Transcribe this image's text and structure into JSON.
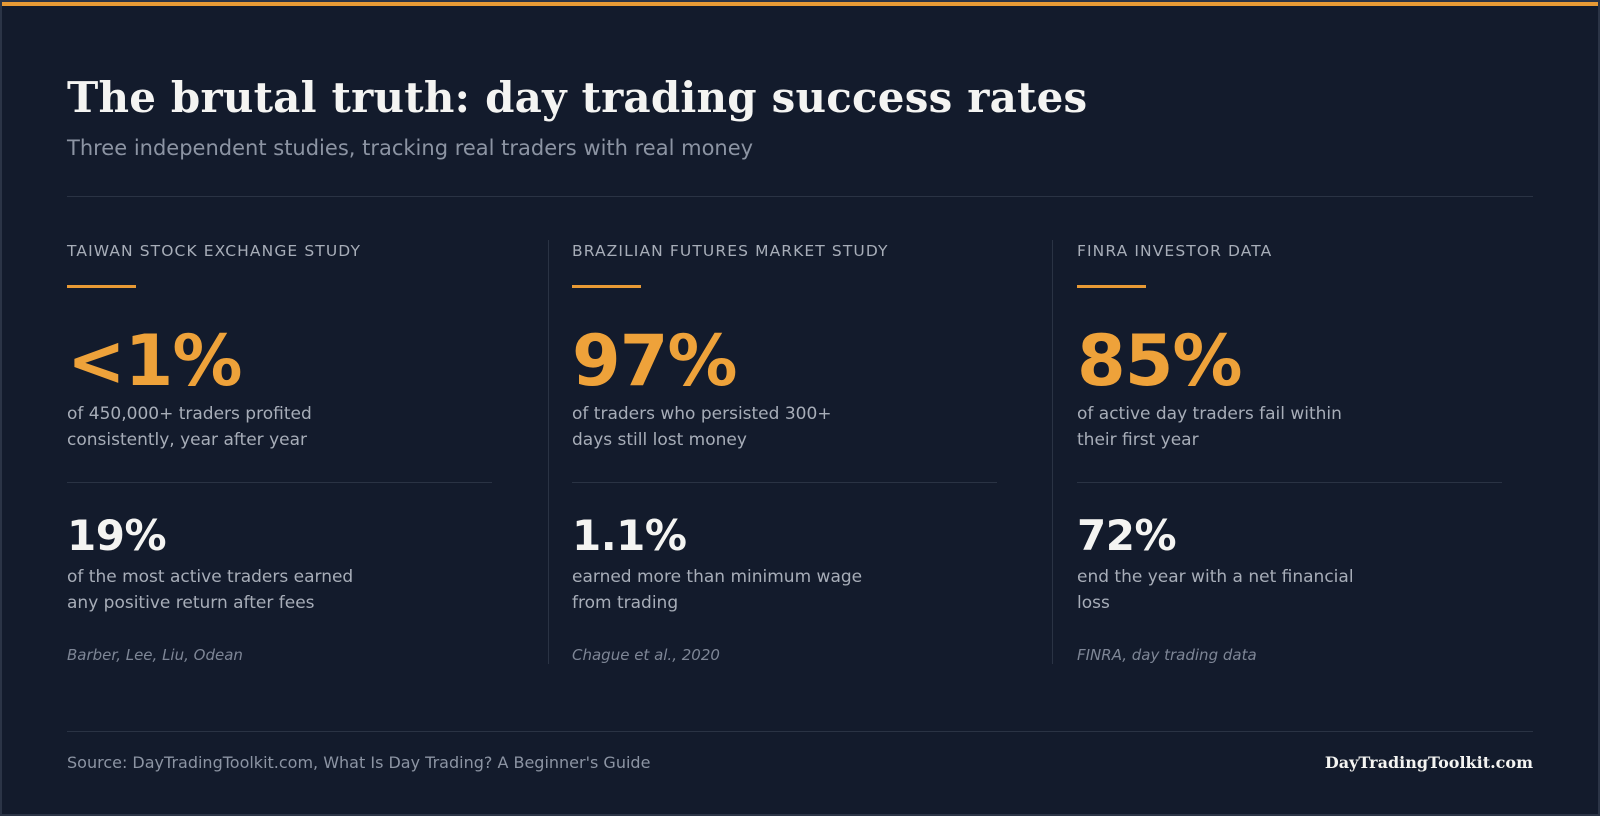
{
  "header": {
    "title": "The brutal truth: day trading success rates",
    "subtitle": "Three independent studies, tracking real traders with real money"
  },
  "colors": {
    "background": "#131b2c",
    "accent": "#e89a35",
    "stat": "#eea23a"
  },
  "studies": [
    {
      "label": "TAIWAN STOCK EXCHANGE STUDY",
      "primary_value": "<1%",
      "primary_desc": "of 450,000+ traders profited consistently, year after year",
      "secondary_value": "19%",
      "secondary_desc": "of the most active traders earned any positive return after fees",
      "citation": "Barber, Lee, Liu, Odean"
    },
    {
      "label": "BRAZILIAN FUTURES MARKET STUDY",
      "primary_value": "97%",
      "primary_desc": "of traders who persisted 300+ days still lost money",
      "secondary_value": "1.1%",
      "secondary_desc": "earned more than minimum wage from trading",
      "citation": "Chague et al., 2020"
    },
    {
      "label": "FINRA INVESTOR DATA",
      "primary_value": "85%",
      "primary_desc": "of active day traders fail within their first year",
      "secondary_value": "72%",
      "secondary_desc": "end the year with a net financial loss",
      "citation": "FINRA, day trading data"
    }
  ],
  "footer": {
    "source": "Source: DayTradingToolkit.com, What Is Day Trading? A Beginner's Guide",
    "brand": "DayTradingToolkit.com"
  }
}
